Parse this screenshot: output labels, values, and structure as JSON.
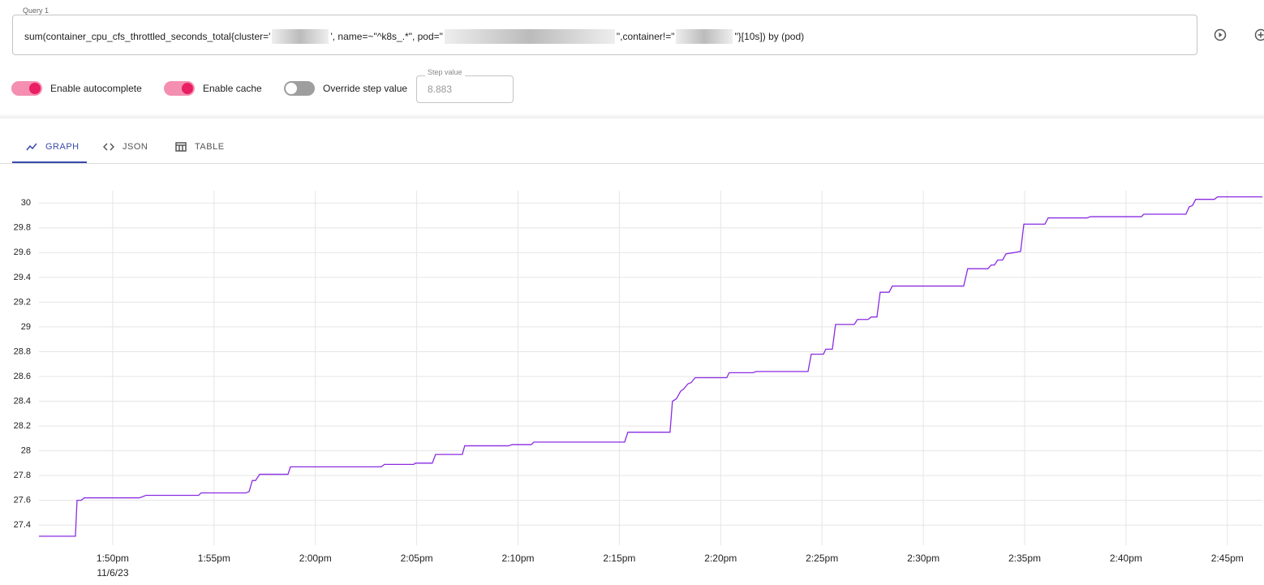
{
  "query": {
    "label": "Query 1",
    "parts": [
      "sum(container_cpu_cfs_throttled_seconds_total{cluster='",
      "', name=~\"^k8s_.*\", pod=\"",
      "\",container!=\"",
      "\"}[10s]) by (pod)"
    ]
  },
  "options": [
    {
      "label": "Enable autocomplete",
      "checked": true
    },
    {
      "label": "Enable cache",
      "checked": true
    },
    {
      "label": "Override step value",
      "checked": false
    }
  ],
  "step": {
    "label": "Step value",
    "placeholder": "8.883"
  },
  "tabs": [
    {
      "label": "GRAPH",
      "active": true
    },
    {
      "label": "JSON",
      "active": false
    },
    {
      "label": "TABLE",
      "active": false
    }
  ],
  "chart_data": {
    "type": "line",
    "color": "#8a2be2",
    "grid": true,
    "x_date_label": "11/6/23",
    "x": [
      826.36,
      828.16,
      828.24,
      828.44,
      828.6,
      831.32,
      831.64,
      834.24,
      834.36,
      836.57,
      836.73,
      836.89,
      837.05,
      837.25,
      838.65,
      838.77,
      843.25,
      843.41,
      844.85,
      844.93,
      845.77,
      845.93,
      847.25,
      847.37,
      849.54,
      849.7,
      850.66,
      850.78,
      855.26,
      855.42,
      857.5,
      857.62,
      857.82,
      858.02,
      858.18,
      858.38,
      858.54,
      858.74,
      860.3,
      860.42,
      861.59,
      861.75,
      864.31,
      864.47,
      865.07,
      865.19,
      865.51,
      865.67,
      866.59,
      866.75,
      867.27,
      867.43,
      867.71,
      867.87,
      868.31,
      868.47,
      871.99,
      872.19,
      873.19,
      873.35,
      873.51,
      873.67,
      873.91,
      874.08,
      874.48,
      874.8,
      874.96,
      876.0,
      876.16,
      878.08,
      878.24,
      880.76,
      880.88,
      882.96,
      883.12,
      883.28,
      883.44,
      884.36,
      884.52,
      886.73
    ],
    "values": [
      27.31,
      27.31,
      27.6,
      27.6,
      27.62,
      27.62,
      27.64,
      27.64,
      27.66,
      27.66,
      27.67,
      27.76,
      27.76,
      27.81,
      27.81,
      27.87,
      27.87,
      27.89,
      27.89,
      27.9,
      27.9,
      27.97,
      27.97,
      28.04,
      28.04,
      28.05,
      28.05,
      28.07,
      28.07,
      28.15,
      28.15,
      28.4,
      28.42,
      28.48,
      28.5,
      28.54,
      28.55,
      28.59,
      28.59,
      28.63,
      28.63,
      28.64,
      28.64,
      28.78,
      28.78,
      28.82,
      28.82,
      29.02,
      29.02,
      29.06,
      29.06,
      29.08,
      29.08,
      29.28,
      29.28,
      29.33,
      29.33,
      29.47,
      29.47,
      29.5,
      29.5,
      29.54,
      29.54,
      29.59,
      29.6,
      29.61,
      29.83,
      29.83,
      29.88,
      29.88,
      29.89,
      29.89,
      29.91,
      29.91,
      29.97,
      29.98,
      30.03,
      30.03,
      30.05,
      30.05
    ],
    "xlim": [
      826.36,
      886.73
    ],
    "ylim": [
      27.27,
      30.1
    ],
    "xticks": [
      {
        "value": 830,
        "label": "1:50pm"
      },
      {
        "value": 835,
        "label": "1:55pm"
      },
      {
        "value": 840,
        "label": "2:00pm"
      },
      {
        "value": 845,
        "label": "2:05pm"
      },
      {
        "value": 850,
        "label": "2:10pm"
      },
      {
        "value": 855,
        "label": "2:15pm"
      },
      {
        "value": 860,
        "label": "2:20pm"
      },
      {
        "value": 865,
        "label": "2:25pm"
      },
      {
        "value": 870,
        "label": "2:30pm"
      },
      {
        "value": 875,
        "label": "2:35pm"
      },
      {
        "value": 880,
        "label": "2:40pm"
      },
      {
        "value": 885,
        "label": "2:45pm"
      }
    ],
    "yticks": [
      27.4,
      27.6,
      27.8,
      28,
      28.2,
      28.4,
      28.6,
      28.8,
      29,
      29.2,
      29.4,
      29.6,
      29.8,
      30
    ]
  }
}
